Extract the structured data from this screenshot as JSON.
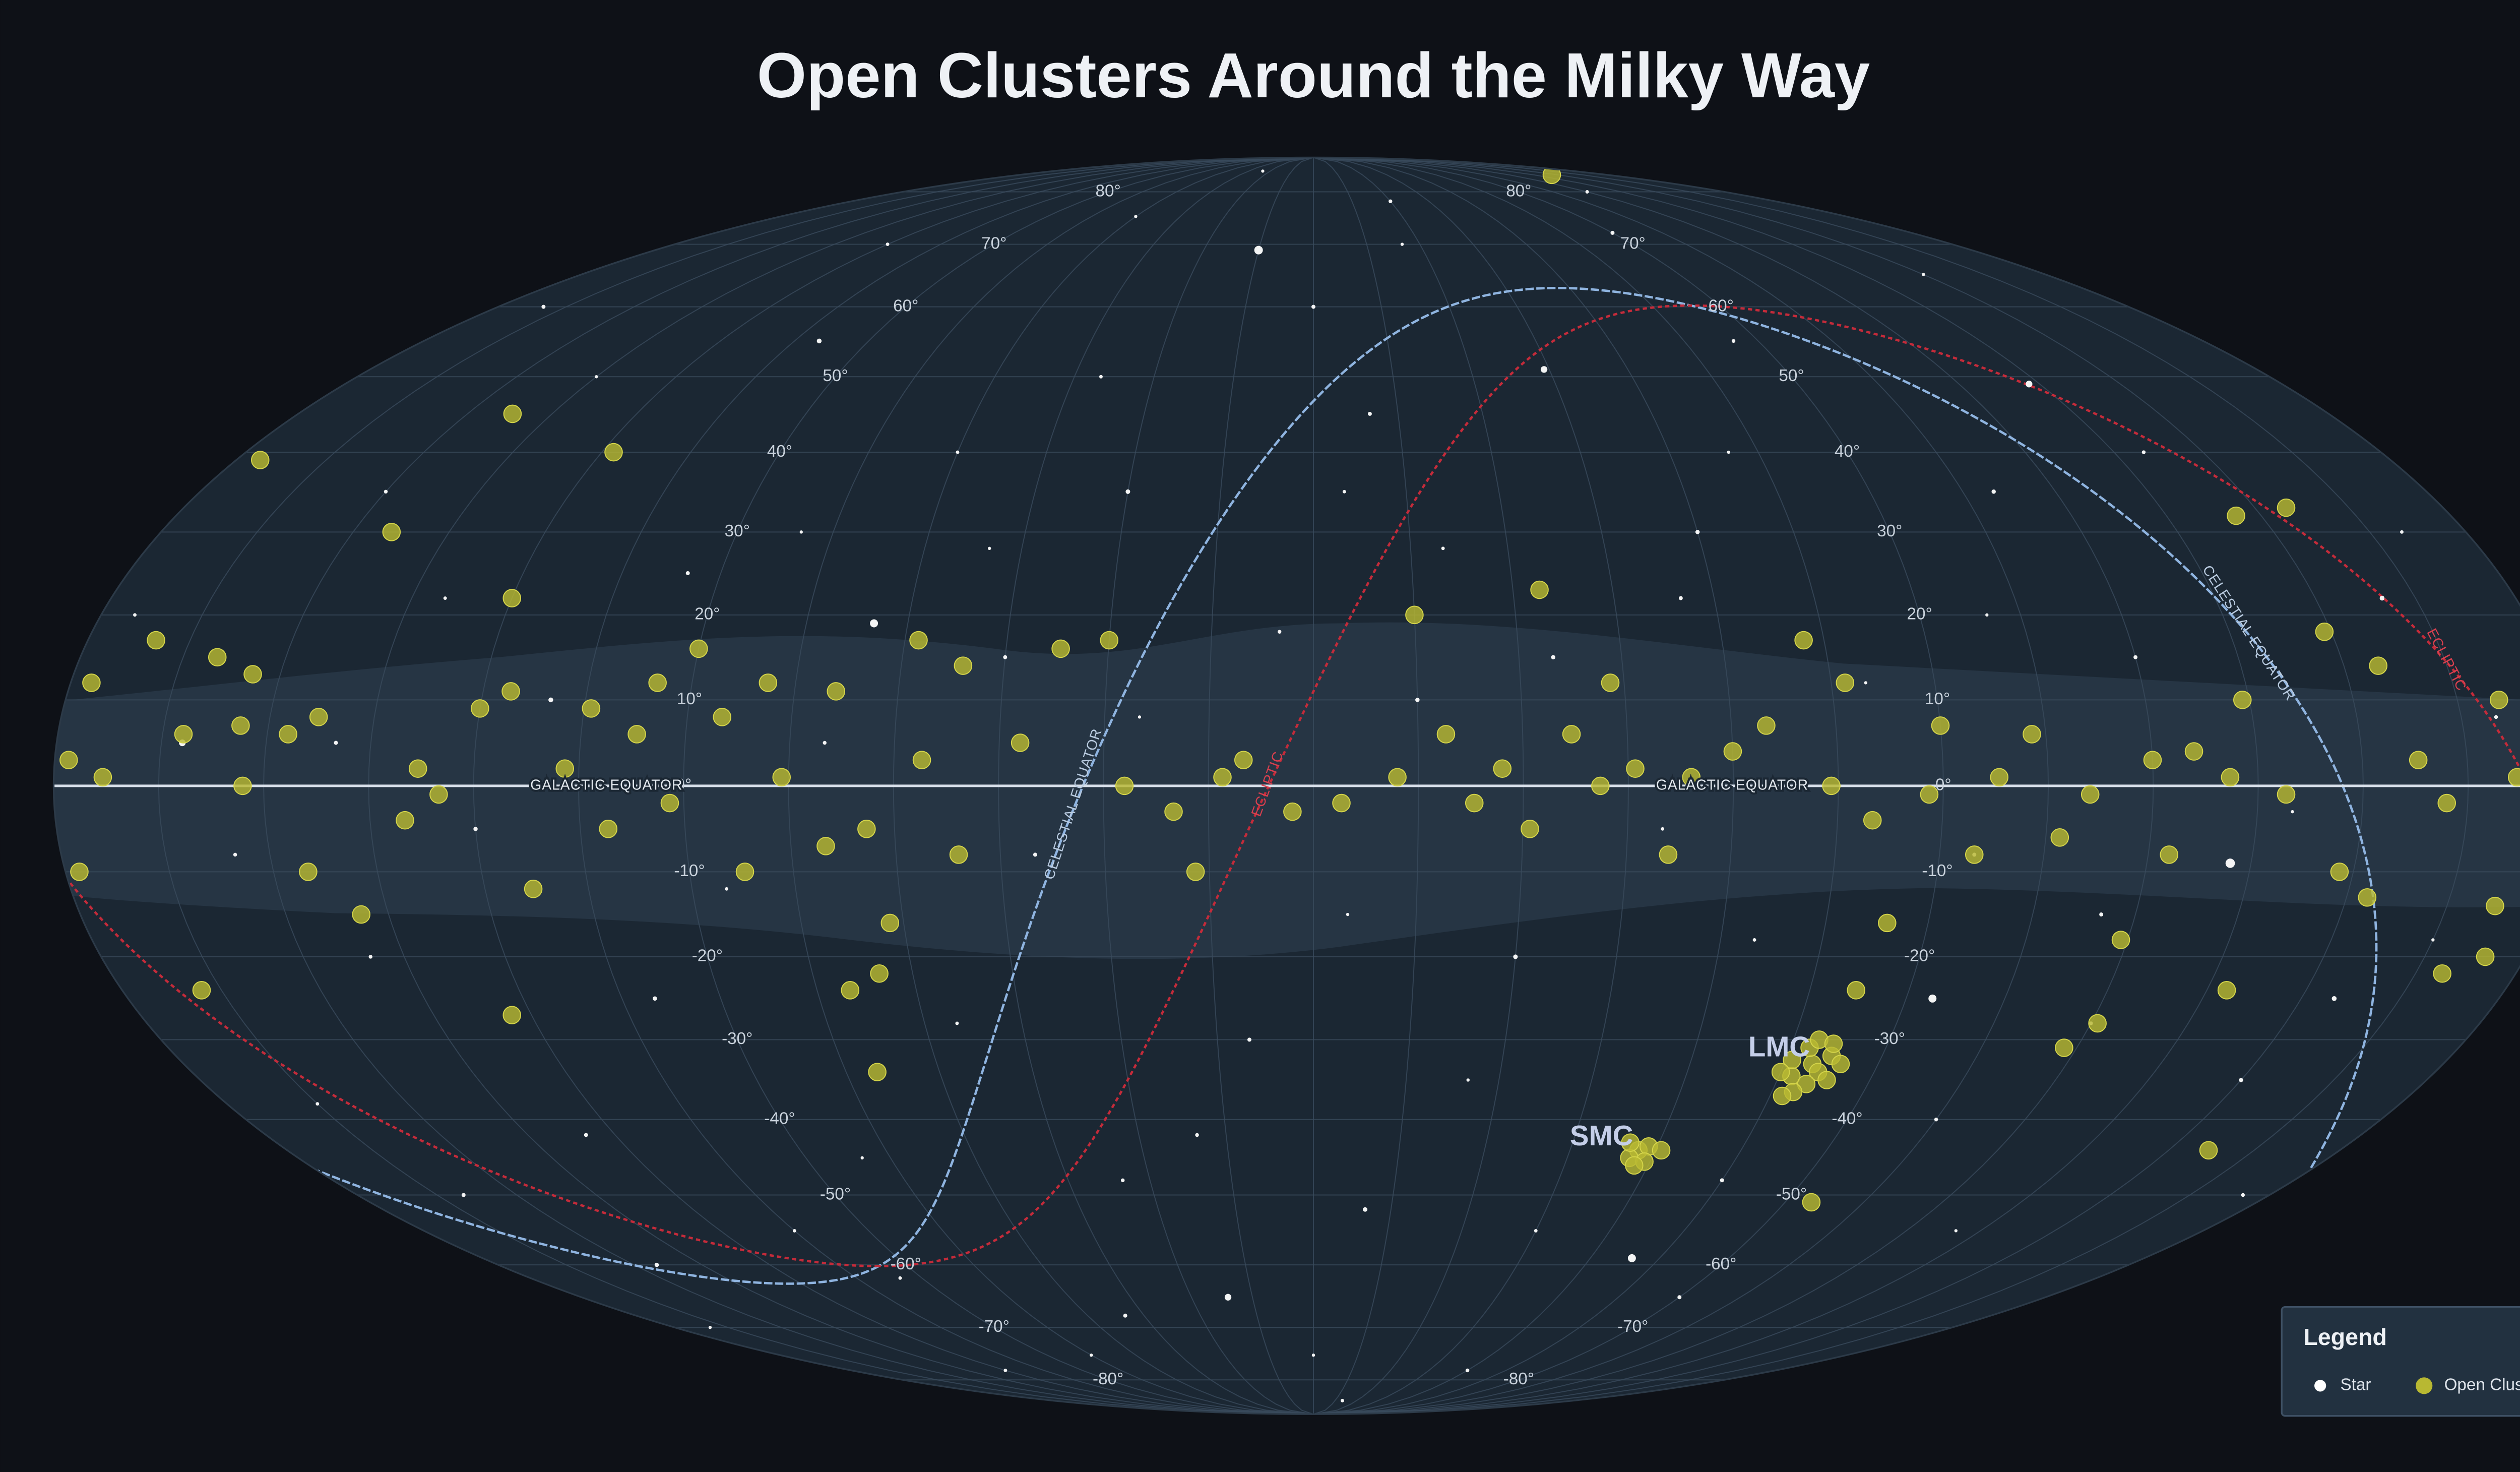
{
  "title": "Open Clusters Around the Milky Way",
  "map": {
    "projection": "mollweide",
    "lat_ticks": [
      {
        "value": 80,
        "label": "80°"
      },
      {
        "value": 70,
        "label": "70°"
      },
      {
        "value": 60,
        "label": "60°"
      },
      {
        "value": 50,
        "label": "50°"
      },
      {
        "value": 40,
        "label": "40°"
      },
      {
        "value": 30,
        "label": "30°"
      },
      {
        "value": 20,
        "label": "20°"
      },
      {
        "value": 10,
        "label": "10°"
      },
      {
        "value": 0,
        "label": "0°"
      },
      {
        "value": -10,
        "label": "-10°"
      },
      {
        "value": -20,
        "label": "-20°"
      },
      {
        "value": -30,
        "label": "-30°"
      },
      {
        "value": -40,
        "label": "-40°"
      },
      {
        "value": -50,
        "label": "-50°"
      },
      {
        "value": -60,
        "label": "-60°"
      },
      {
        "value": -70,
        "label": "-70°"
      },
      {
        "value": -80,
        "label": "-80°"
      }
    ],
    "grid": true,
    "lines": {
      "galactic_equator": "GALACTIC EQUATOR",
      "celestial_equator": "CELESTIAL EQUATOR",
      "ecliptic": "ECLIPTIC"
    },
    "annotations": [
      "LMC",
      "SMC"
    ]
  },
  "series": [
    {
      "name": "Star",
      "color": "#ffffff",
      "points": [
        [
          15,
          69,
          3.2
        ],
        [
          -132,
          -9,
          3.5
        ],
        [
          -94,
          -25,
          3
        ],
        [
          -69,
          -59,
          3
        ],
        [
          65,
          19,
          3
        ],
        [
          -44,
          51,
          2.5
        ],
        [
          -133,
          49,
          2.5
        ],
        [
          21,
          -65,
          2.5
        ],
        [
          162,
          5,
          2.5
        ],
        [
          170,
          60,
          1.5
        ],
        [
          120,
          70,
          1.3
        ],
        [
          60,
          75,
          1.2
        ],
        [
          -30,
          78,
          1.4
        ],
        [
          -90,
          72,
          1.5
        ],
        [
          -150,
          65,
          1.2
        ],
        [
          100,
          55,
          1.8
        ],
        [
          40,
          50,
          1.3
        ],
        [
          -10,
          45,
          1.5
        ],
        [
          -70,
          40,
          1.2
        ],
        [
          -110,
          35,
          1.6
        ],
        [
          -170,
          30,
          1.3
        ],
        [
          150,
          35,
          1.4
        ],
        [
          80,
          30,
          1.2
        ],
        [
          30,
          35,
          1.7
        ],
        [
          -20,
          28,
          1.3
        ],
        [
          -55,
          22,
          1.5
        ],
        [
          -100,
          20,
          1.2
        ],
        [
          -160,
          22,
          1.8
        ],
        [
          130,
          22,
          1.3
        ],
        [
          95,
          25,
          1.5
        ],
        [
          50,
          28,
          1.2
        ],
        [
          5,
          18,
          1.4
        ],
        [
          -35,
          15,
          1.6
        ],
        [
          -80,
          12,
          1.2
        ],
        [
          -120,
          15,
          1.5
        ],
        [
          175,
          20,
          1.3
        ],
        [
          110,
          10,
          1.8
        ],
        [
          70,
          5,
          1.4
        ],
        [
          25,
          8,
          1.2
        ],
        [
          -15,
          10,
          1.6
        ],
        [
          -50,
          -5,
          1.3
        ],
        [
          -95,
          -8,
          1.5
        ],
        [
          -140,
          -3,
          1.2
        ],
        [
          155,
          -8,
          1.4
        ],
        [
          120,
          -5,
          1.6
        ],
        [
          85,
          -12,
          1.3
        ],
        [
          40,
          -8,
          1.5
        ],
        [
          -5,
          -15,
          1.2
        ],
        [
          -30,
          -20,
          1.7
        ],
        [
          -65,
          -18,
          1.3
        ],
        [
          -115,
          -15,
          1.5
        ],
        [
          -165,
          -18,
          1.2
        ],
        [
          140,
          -20,
          1.4
        ],
        [
          100,
          -25,
          1.6
        ],
        [
          55,
          -28,
          1.3
        ],
        [
          10,
          -30,
          1.5
        ],
        [
          -25,
          -35,
          1.2
        ],
        [
          -105,
          -40,
          1.4
        ],
        [
          -150,
          -35,
          1.6
        ],
        [
          165,
          -38,
          1.3
        ],
        [
          125,
          -42,
          1.5
        ],
        [
          80,
          -45,
          1.2
        ],
        [
          35,
          -48,
          1.4
        ],
        [
          -10,
          -52,
          1.7
        ],
        [
          -45,
          -55,
          1.3
        ],
        [
          -90,
          -65,
          1.5
        ],
        [
          -130,
          -55,
          1.2
        ],
        [
          -175,
          -50,
          1.4
        ],
        [
          145,
          -60,
          1.6
        ],
        [
          95,
          -62,
          1.3
        ],
        [
          50,
          -68,
          1.5
        ],
        [
          0,
          -75,
          1.2
        ],
        [
          -60,
          -78,
          1.4
        ],
        [
          120,
          -78,
          1.3
        ],
        [
          170,
          -70,
          1.2
        ],
        [
          -120,
          80,
          1.3
        ],
        [
          0,
          60,
          1.5
        ],
        [
          60,
          40,
          1.3
        ],
        [
          -140,
          40,
          1.4
        ],
        [
          -25,
          70,
          1.2
        ],
        [
          140,
          5,
          1.5
        ],
        [
          -170,
          8,
          1.4
        ],
        [
          -60,
          30,
          1.6
        ],
        [
          20,
          -42,
          1.4
        ],
        [
          -75,
          -48,
          1.5
        ],
        [
          105,
          -55,
          1.3
        ],
        [
          -155,
          -25,
          1.8
        ],
        [
          75,
          -75,
          1.2
        ],
        [
          -20,
          -85,
          1.3
        ],
        [
          35,
          85,
          1.2
        ],
        [
          -85,
          55,
          1.4
        ],
        [
          135,
          50,
          1.2
        ],
        [
          -5,
          35,
          1.3
        ],
        [
          45,
          15,
          1.5
        ],
        [
          -120,
          -28,
          1.4
        ],
        [
          160,
          -50,
          1.5
        ]
      ]
    },
    {
      "name": "Open Cluster",
      "color": "#b8b832",
      "points": [
        [
          177,
          12
        ],
        [
          170,
          17
        ],
        [
          178,
          3
        ],
        [
          178,
          -10
        ],
        [
          173,
          1
        ],
        [
          162,
          6
        ],
        [
          160,
          15
        ],
        [
          154,
          13
        ],
        [
          154,
          7
        ],
        [
          153,
          0
        ],
        [
          147,
          6
        ],
        [
          143,
          8
        ],
        [
          145,
          -10
        ],
        [
          139,
          -15
        ],
        [
          130,
          -4
        ],
        [
          128,
          2
        ],
        [
          125,
          -1
        ],
        [
          120,
          9
        ],
        [
          116,
          11
        ],
        [
          120,
          22
        ],
        [
          113,
          -12
        ],
        [
          107,
          2
        ],
        [
          104,
          9
        ],
        [
          101,
          -5
        ],
        [
          97,
          6
        ],
        [
          95,
          12
        ],
        [
          92,
          -2
        ],
        [
          90,
          16
        ],
        [
          85,
          8
        ],
        [
          82,
          -10
        ],
        [
          79,
          12
        ],
        [
          76,
          1
        ],
        [
          69,
          11
        ],
        [
          70,
          -7
        ],
        [
          64,
          -5
        ],
        [
          58,
          17
        ],
        [
          56,
          3
        ],
        [
          51,
          -8
        ],
        [
          51,
          14
        ],
        [
          42,
          5
        ],
        [
          37,
          16
        ],
        [
          30,
          17
        ],
        [
          27,
          0
        ],
        [
          20,
          -3
        ],
        [
          17,
          -10
        ],
        [
          13,
          1
        ],
        [
          10,
          3
        ],
        [
          3,
          -3
        ],
        [
          -4,
          -2
        ],
        [
          -12,
          1
        ],
        [
          -15,
          20
        ],
        [
          -19,
          6
        ],
        [
          -23,
          -2
        ],
        [
          -27,
          2
        ],
        [
          -31,
          -5
        ],
        [
          -37,
          6
        ],
        [
          -41,
          0
        ],
        [
          -43,
          12
        ],
        [
          -46,
          2
        ],
        [
          -51,
          -8
        ],
        [
          -54,
          1
        ],
        [
          -60,
          4
        ],
        [
          -65,
          7
        ],
        [
          -72,
          17
        ],
        [
          -74,
          0
        ],
        [
          -77,
          12
        ],
        [
          -80,
          -4
        ],
        [
          -84,
          -16
        ],
        [
          -88,
          -1
        ],
        [
          -90,
          7
        ],
        [
          -95,
          -8
        ],
        [
          -98,
          1
        ],
        [
          -103,
          6
        ],
        [
          -107,
          -6
        ],
        [
          -111,
          -1
        ],
        [
          -119,
          -18
        ],
        [
          -120,
          3
        ],
        [
          -123,
          -8
        ],
        [
          -126,
          4
        ],
        [
          -131,
          1
        ],
        [
          -146,
          32
        ],
        [
          -155,
          33
        ],
        [
          -134,
          10
        ],
        [
          -139,
          -1
        ],
        [
          -149,
          18
        ],
        [
          -148,
          -10
        ],
        [
          -155,
          14
        ],
        [
          -158,
          3
        ],
        [
          -162,
          -2
        ],
        [
          -171,
          10
        ],
        [
          -172,
          1
        ],
        [
          -178,
          -4
        ],
        [
          -172,
          -14
        ],
        [
          -169,
          -22
        ],
        [
          -138,
          -24
        ],
        [
          -157,
          -44
        ],
        [
          -121,
          -28
        ],
        [
          -118,
          -31
        ],
        [
          -95,
          -51
        ],
        [
          -82,
          -24
        ],
        [
          -34,
          23
        ],
        [
          -146,
          84
        ],
        [
          142,
          45
        ],
        [
          118,
          40
        ],
        [
          176,
          39
        ],
        [
          144,
          30
        ],
        [
          168,
          -24
        ],
        [
          123,
          -27
        ],
        [
          70,
          -34
        ],
        [
          65,
          -22
        ],
        [
          70,
          -24
        ],
        [
          62,
          -16
        ],
        [
          -153,
          -13
        ],
        [
          -174,
          -20
        ],
        [
          -79.5,
          -33
        ],
        [
          -78,
          -31
        ],
        [
          -81,
          -34
        ],
        [
          -77,
          -34.5
        ],
        [
          -80,
          -35.5
        ],
        [
          -82,
          -32
        ],
        [
          -76,
          -32.5
        ],
        [
          -79,
          -30
        ],
        [
          -83,
          -35
        ],
        [
          -78.5,
          -36.5
        ],
        [
          -75,
          -34
        ],
        [
          -81.5,
          -30.5
        ],
        [
          -84,
          -33
        ],
        [
          -77,
          -37
        ],
        [
          -57,
          -44
        ],
        [
          -56,
          -45
        ],
        [
          -58.5,
          -43.5
        ],
        [
          -55,
          -43
        ],
        [
          -59,
          -45.5
        ],
        [
          -57.5,
          -46
        ],
        [
          -61,
          -44
        ]
      ]
    }
  ],
  "legend": {
    "title": "Legend"
  }
}
